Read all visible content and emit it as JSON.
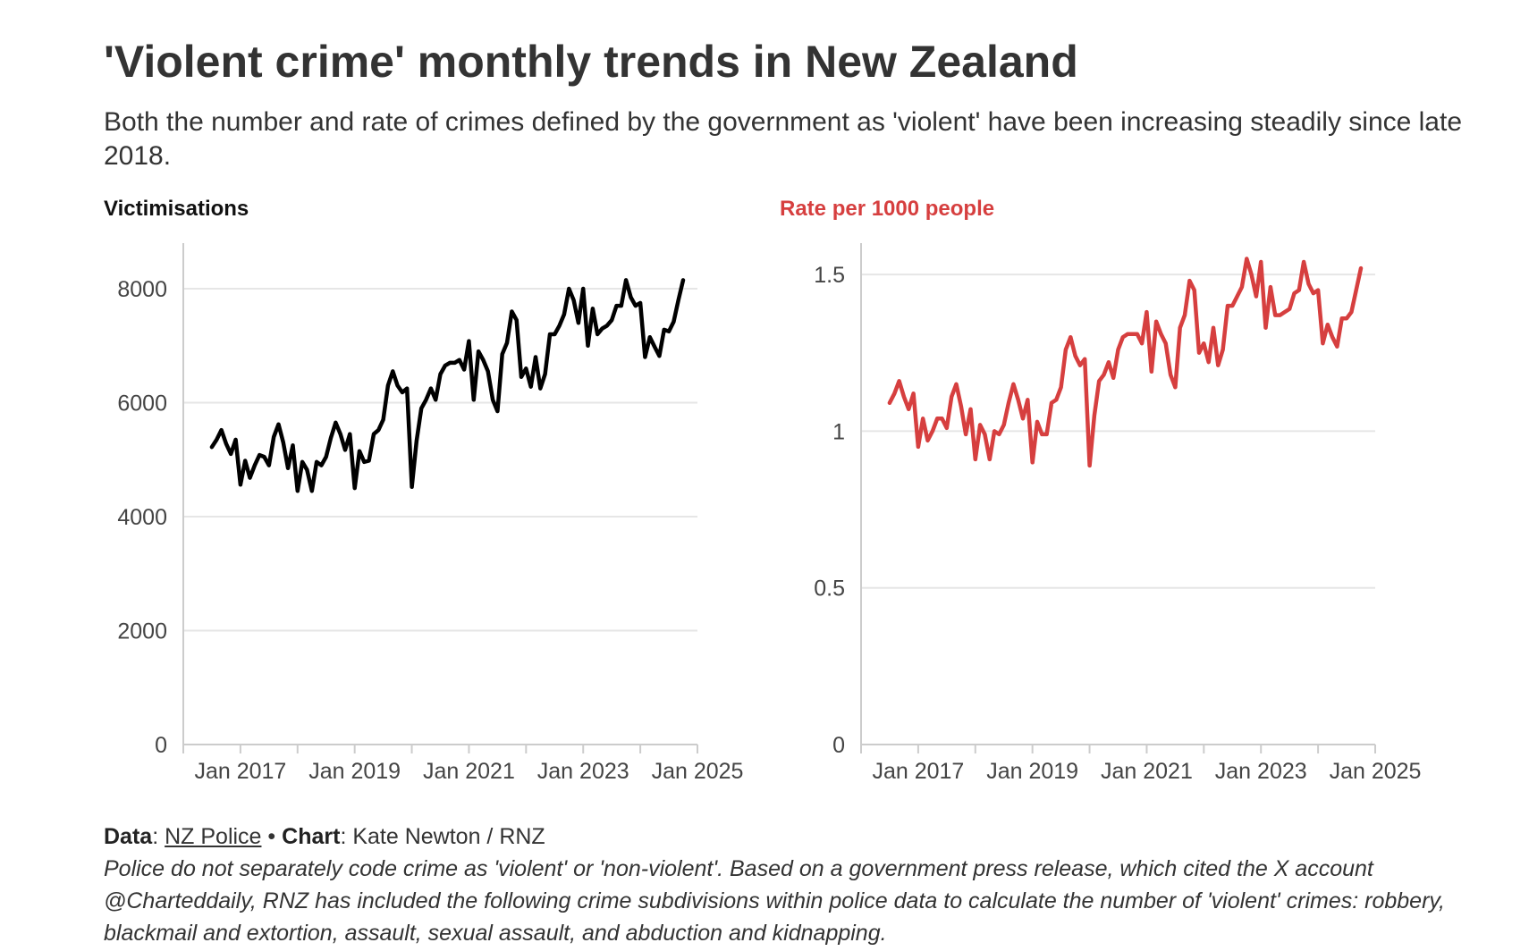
{
  "header": {
    "title": "'Violent crime' monthly trends in New Zealand",
    "subtitle": "Both the number and rate of crimes defined by the government as 'violent' have been increasing steadily since late 2018."
  },
  "footer": {
    "data_label": "Data",
    "data_source": "NZ Police",
    "separator": "•",
    "chart_label": "Chart",
    "chart_author": "Kate Newton / RNZ",
    "note": "Police do not separately code crime as 'violent' or 'non-violent'. Based on a government press release, which cited the X account @Charteddaily, RNZ has included the following crime subdivisions within police data to calculate the number of 'violent' crimes: robbery, blackmail and extortion, assault, sexual assault, and abduction and kidnapping."
  },
  "colors": {
    "victimisations": "#000000",
    "rate": "#d63f3f",
    "grid": "#e6e6e6",
    "axis": "#cccccc"
  },
  "chart_data": [
    {
      "type": "line",
      "title": "Victimisations",
      "x_start": "2016-07",
      "frequency": "monthly",
      "x_ticks": [
        "Jan 2017",
        "Jan 2019",
        "Jan 2021",
        "Jan 2023",
        "Jan 2025"
      ],
      "y_ticks": [
        0,
        2000,
        4000,
        6000,
        8000
      ],
      "ylim": [
        0,
        8800
      ],
      "grid": "horizontal",
      "series": [
        {
          "values": [
            5220,
            5350,
            5520,
            5280,
            5100,
            5350,
            4560,
            4980,
            4680,
            4900,
            5080,
            5050,
            4900,
            5400,
            5620,
            5300,
            4850,
            5250,
            4450,
            4960,
            4820,
            4450,
            4960,
            4900,
            5050,
            5380,
            5650,
            5450,
            5170,
            5450,
            4500,
            5150,
            4960,
            4980,
            5450,
            5520,
            5700,
            6300,
            6550,
            6300,
            6180,
            6250,
            4520,
            5330,
            5900,
            6050,
            6250,
            6050,
            6500,
            6650,
            6700,
            6700,
            6750,
            6580,
            7080,
            6050,
            6900,
            6750,
            6550,
            6050,
            5850,
            6850,
            7050,
            7600,
            7450,
            6450,
            6600,
            6280,
            6800,
            6250,
            6500,
            7200,
            7200,
            7350,
            7550,
            8000,
            7800,
            7400,
            8000,
            7000,
            7650,
            7200,
            7300,
            7350,
            7450,
            7700,
            7700,
            8150,
            7850,
            7700,
            7750,
            6800,
            7150,
            6980,
            6820,
            7280,
            7250,
            7420,
            7800,
            8150
          ]
        }
      ]
    },
    {
      "type": "line",
      "title": "Rate per 1000 people",
      "x_start": "2016-07",
      "frequency": "monthly",
      "x_ticks": [
        "Jan 2017",
        "Jan 2019",
        "Jan 2021",
        "Jan 2023",
        "Jan 2025"
      ],
      "y_ticks": [
        0,
        0.5,
        1,
        1.5
      ],
      "y_tick_labels": [
        "0",
        "0.5",
        "1",
        "1.5"
      ],
      "ylim": [
        0,
        1.6
      ],
      "grid": "horizontal",
      "series": [
        {
          "values": [
            1.09,
            1.12,
            1.16,
            1.11,
            1.07,
            1.12,
            0.95,
            1.04,
            0.97,
            1.0,
            1.04,
            1.04,
            1.01,
            1.11,
            1.15,
            1.08,
            0.99,
            1.07,
            0.91,
            1.02,
            0.99,
            0.91,
            1.0,
            0.99,
            1.02,
            1.09,
            1.15,
            1.1,
            1.04,
            1.1,
            0.9,
            1.03,
            0.99,
            0.99,
            1.09,
            1.1,
            1.14,
            1.26,
            1.3,
            1.24,
            1.21,
            1.23,
            0.89,
            1.05,
            1.16,
            1.18,
            1.22,
            1.17,
            1.26,
            1.3,
            1.31,
            1.31,
            1.31,
            1.28,
            1.38,
            1.19,
            1.35,
            1.31,
            1.28,
            1.18,
            1.14,
            1.33,
            1.37,
            1.48,
            1.45,
            1.25,
            1.28,
            1.22,
            1.33,
            1.21,
            1.26,
            1.4,
            1.4,
            1.43,
            1.46,
            1.55,
            1.5,
            1.43,
            1.54,
            1.33,
            1.46,
            1.37,
            1.37,
            1.38,
            1.39,
            1.44,
            1.45,
            1.54,
            1.47,
            1.44,
            1.45,
            1.28,
            1.34,
            1.3,
            1.27,
            1.36,
            1.36,
            1.38,
            1.45,
            1.52
          ]
        }
      ]
    }
  ]
}
